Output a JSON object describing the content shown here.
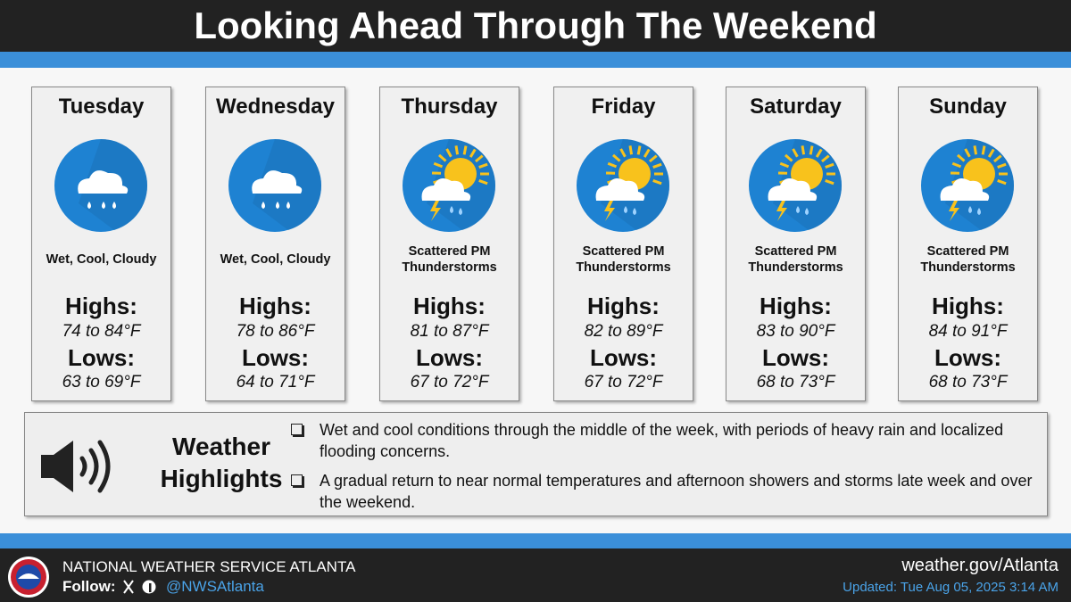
{
  "header": {
    "title": "Looking Ahead Through The Weekend"
  },
  "days": [
    {
      "name": "Tuesday",
      "condition": "Wet, Cool, Cloudy",
      "highs_label": "Highs:",
      "highs": "74 to 84°F",
      "lows_label": "Lows:",
      "lows": "63 to 69°F"
    },
    {
      "name": "Wednesday",
      "condition": "Wet, Cool, Cloudy",
      "highs_label": "Highs:",
      "highs": "78 to 86°F",
      "lows_label": "Lows:",
      "lows": "64 to 71°F"
    },
    {
      "name": "Thursday",
      "condition": "Scattered PM Thunderstorms",
      "highs_label": "Highs:",
      "highs": "81 to 87°F",
      "lows_label": "Lows:",
      "lows": "67 to 72°F"
    },
    {
      "name": "Friday",
      "condition": "Scattered PM Thunderstorms",
      "highs_label": "Highs:",
      "highs": "82 to 89°F",
      "lows_label": "Lows:",
      "lows": "67 to 72°F"
    },
    {
      "name": "Saturday",
      "condition": "Scattered PM Thunderstorms",
      "highs_label": "Highs:",
      "highs": "83 to 90°F",
      "lows_label": "Lows:",
      "lows": "68 to 73°F"
    },
    {
      "name": "Sunday",
      "condition": "Scattered PM Thunderstorms",
      "highs_label": "Highs:",
      "highs": "84 to 91°F",
      "lows_label": "Lows:",
      "lows": "68 to 73°F"
    }
  ],
  "highlights": {
    "title": "Weather Highlights",
    "bullets": [
      "Wet and cool conditions through the middle of the week, with periods of heavy rain and localized flooding concerns.",
      "A gradual return to near normal temperatures and afternoon showers and storms late week and over the weekend."
    ]
  },
  "footer": {
    "office": "NATIONAL WEATHER SERVICE ATLANTA",
    "follow": "Follow:",
    "handle": "@NWSAtlanta",
    "website": "weather.gov/Atlanta",
    "updated": "Updated: Tue Aug 05, 2025 3:14 AM"
  }
}
